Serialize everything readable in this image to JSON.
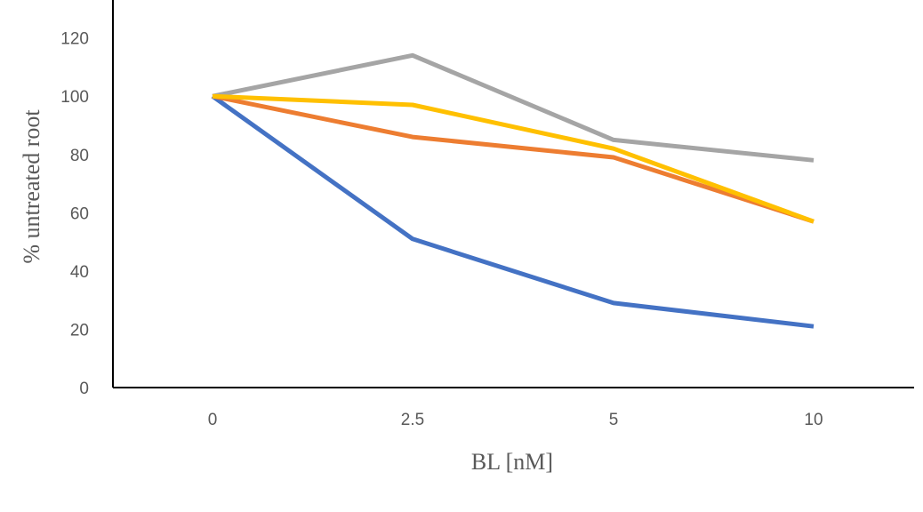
{
  "chart_data": {
    "type": "line",
    "categories": [
      "0",
      "2.5",
      "5",
      "10"
    ],
    "series": [
      {
        "values": [
          100,
          51,
          29,
          21
        ],
        "color": "#4472C4"
      },
      {
        "values": [
          100,
          86,
          79,
          57
        ],
        "color": "#ED7D31"
      },
      {
        "values": [
          100,
          114,
          85,
          78
        ],
        "color": "#A5A5A5"
      },
      {
        "values": [
          100,
          97,
          82,
          57
        ],
        "color": "#FFC000"
      }
    ],
    "xlabel": "BL  [nM]",
    "ylabel": "% untreated  root",
    "ylim": [
      0,
      130
    ],
    "yticks": [
      0,
      20,
      40,
      60,
      80,
      100,
      120
    ],
    "grid": false,
    "legend": "none"
  }
}
